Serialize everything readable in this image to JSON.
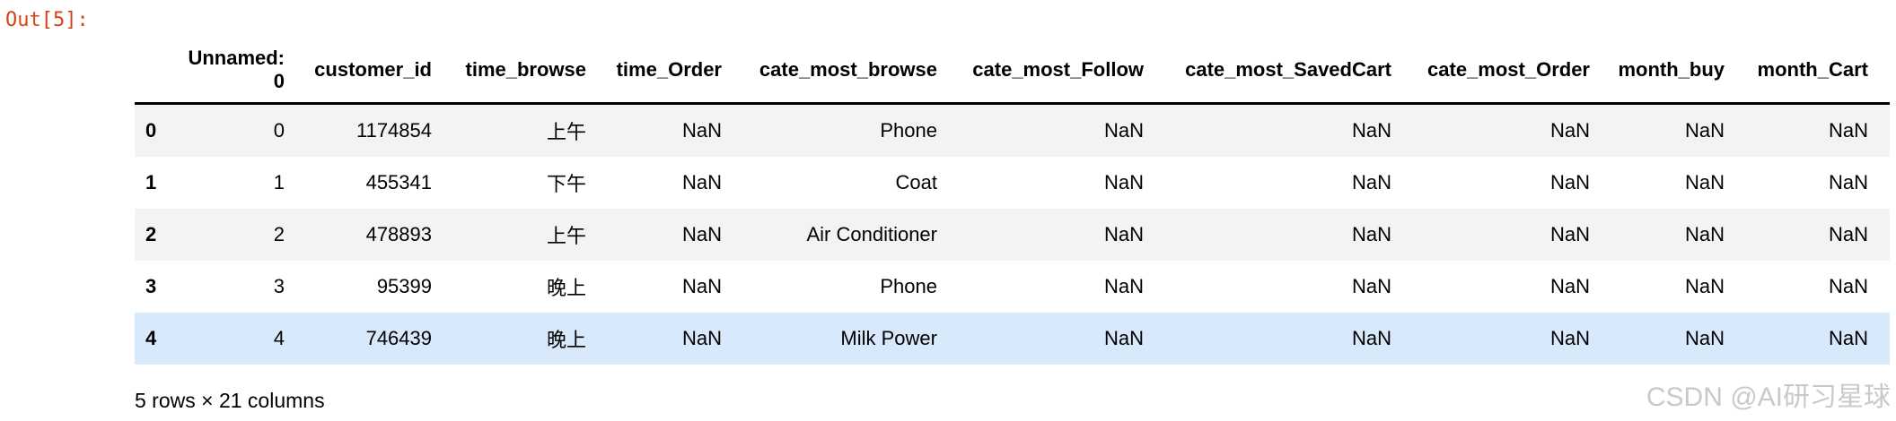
{
  "prompt": "Out[5]:",
  "table": {
    "columns": [
      "Unnamed:\n0",
      "customer_id",
      "time_browse",
      "time_Order",
      "cate_most_browse",
      "cate_most_Follow",
      "cate_most_SavedCart",
      "cate_most_Order",
      "month_buy",
      "month_Cart"
    ],
    "rows": [
      {
        "index": "0",
        "cells": [
          "0",
          "1174854",
          "上午",
          "NaN",
          "Phone",
          "NaN",
          "NaN",
          "NaN",
          "NaN",
          "NaN"
        ]
      },
      {
        "index": "1",
        "cells": [
          "1",
          "455341",
          "下午",
          "NaN",
          "Coat",
          "NaN",
          "NaN",
          "NaN",
          "NaN",
          "NaN"
        ]
      },
      {
        "index": "2",
        "cells": [
          "2",
          "478893",
          "上午",
          "NaN",
          "Air Conditioner",
          "NaN",
          "NaN",
          "NaN",
          "NaN",
          "NaN"
        ]
      },
      {
        "index": "3",
        "cells": [
          "3",
          "95399",
          "晚上",
          "NaN",
          "Phone",
          "NaN",
          "NaN",
          "NaN",
          "NaN",
          "NaN"
        ]
      },
      {
        "index": "4",
        "cells": [
          "4",
          "746439",
          "晚上",
          "NaN",
          "Milk Power",
          "NaN",
          "NaN",
          "NaN",
          "NaN",
          "NaN"
        ]
      }
    ],
    "hovered_row": 4
  },
  "footer": "5 rows × 21 columns",
  "watermark": "CSDN @AI研习星球",
  "colors": {
    "prompt": "#d84315",
    "stripe": "#f3f3f3",
    "hover": "#d7e9fa"
  }
}
